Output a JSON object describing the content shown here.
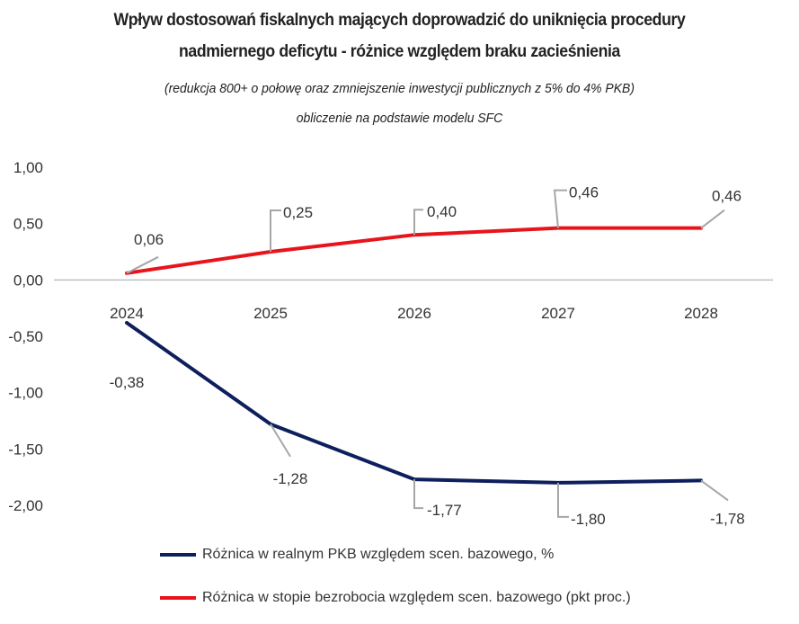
{
  "chart_data": {
    "type": "line",
    "title": "Wpływ dostosowań fiskalnych mających doprowadzić do uniknięcia procedury nadmiernego deficytu - różnice względem braku zacieśnienia",
    "title_lines": [
      "Wpływ dostosowań fiskalnych mających doprowadzić do uniknięcia procedury",
      "nadmiernego deficytu - różnice względem braku zacieśnienia"
    ],
    "subtitle_lines": [
      "(redukcja 800+ o połowę oraz zmniejszenie inwestycji publicznych z 5% do 4% PKB)",
      "obliczenie na podstawie modelu SFC"
    ],
    "categories": [
      "2024",
      "2025",
      "2026",
      "2027",
      "2028"
    ],
    "y_ticks": [
      "1,00",
      "0,50",
      "0,00",
      "-0,50",
      "-1,00",
      "-1,50",
      "-2,00"
    ],
    "ylim": [
      -2.0,
      1.0
    ],
    "grid": false,
    "legend_position": "bottom",
    "series": [
      {
        "name": "Różnica w realnym PKB względem scen. bazowego, %",
        "color": "#0d1f5c",
        "values": [
          -0.38,
          -1.28,
          -1.77,
          -1.8,
          -1.78
        ],
        "labels": [
          "-0,38",
          "-1,28",
          "-1,77",
          "-1,80",
          "-1,78"
        ]
      },
      {
        "name": "Różnica w stopie bezrobocia względem scen. bazowego (pkt proc.)",
        "color": "#e8141b",
        "values": [
          0.06,
          0.25,
          0.4,
          0.46,
          0.46
        ],
        "labels": [
          "0,06",
          "0,25",
          "0,40",
          "0,46",
          "0,46"
        ]
      }
    ]
  }
}
